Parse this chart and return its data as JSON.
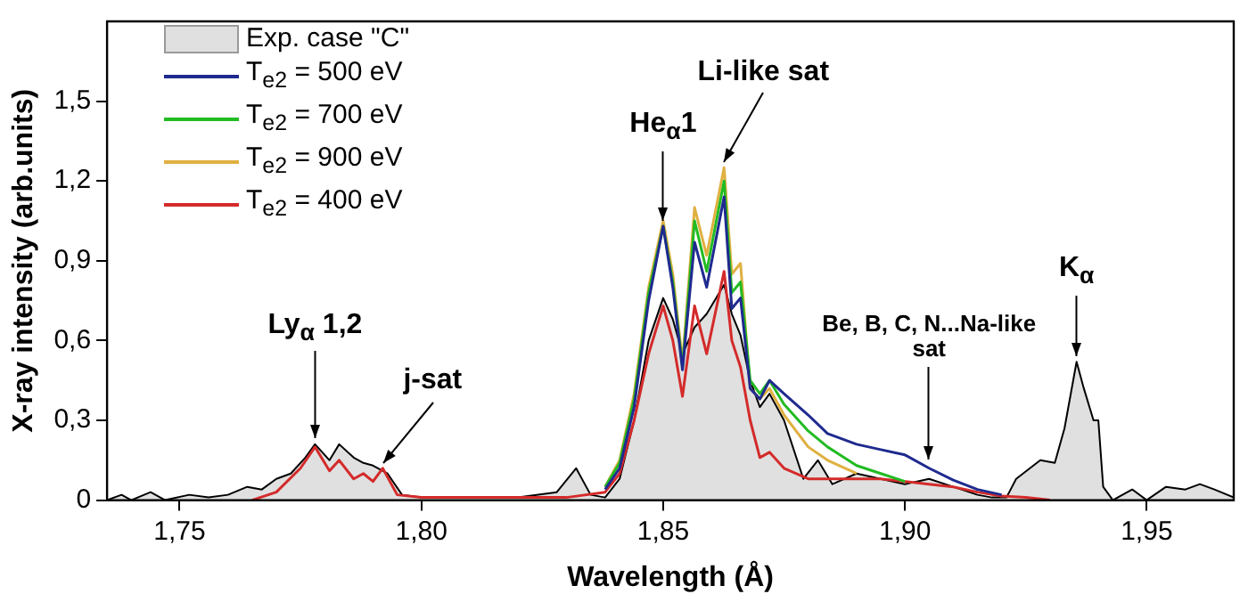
{
  "chart_data": {
    "type": "line",
    "xlabel": "Wavelength (Å)",
    "ylabel": "X-ray intensity (arb.units)",
    "xlim": [
      1.735,
      1.968
    ],
    "ylim": [
      0,
      1.8
    ],
    "xticks": [
      {
        "value": 1.75,
        "label": "1,75"
      },
      {
        "value": 1.8,
        "label": "1,80"
      },
      {
        "value": 1.85,
        "label": "1,85"
      },
      {
        "value": 1.9,
        "label": "1,90"
      },
      {
        "value": 1.95,
        "label": "1,95"
      }
    ],
    "yticks": [
      0,
      {
        "value": 0.3,
        "label": "0,3"
      },
      {
        "value": 0.6,
        "label": "0,6"
      },
      {
        "value": 0.9,
        "label": "0,9"
      },
      {
        "value": 1.2,
        "label": "1,2"
      },
      {
        "value": 1.5,
        "label": "1,5"
      }
    ],
    "legend": "top left",
    "x": [
      1.765,
      1.77,
      1.775,
      1.778,
      1.781,
      1.783,
      1.786,
      1.788,
      1.79,
      1.792,
      1.795,
      1.8,
      1.83,
      1.838,
      1.841,
      1.844,
      1.847,
      1.85,
      1.852,
      1.854,
      1.8565,
      1.859,
      1.8626,
      1.8642,
      1.866,
      1.868,
      1.87,
      1.872,
      1.875,
      1.88,
      1.884,
      1.89,
      1.895,
      1.9,
      1.905,
      1.91,
      1.915,
      1.92,
      1.925,
      1.93
    ],
    "series": [
      {
        "name": "Exp. case \"C\"",
        "type": "area",
        "color": "#e0e0e0",
        "x": [
          1.735,
          1.738,
          1.74,
          1.744,
          1.747,
          1.752,
          1.756,
          1.76,
          1.764,
          1.767,
          1.77,
          1.773,
          1.776,
          1.778,
          1.781,
          1.783,
          1.786,
          1.788,
          1.79,
          1.793,
          1.796,
          1.8,
          1.81,
          1.82,
          1.828,
          1.832,
          1.835,
          1.838,
          1.841,
          1.844,
          1.847,
          1.85,
          1.852,
          1.854,
          1.8565,
          1.859,
          1.8626,
          1.8642,
          1.866,
          1.868,
          1.87,
          1.872,
          1.875,
          1.879,
          1.882,
          1.885,
          1.89,
          1.895,
          1.9,
          1.905,
          1.91,
          1.915,
          1.918,
          1.921,
          1.923,
          1.928,
          1.931,
          1.933,
          1.9355,
          1.937,
          1.939,
          1.94,
          1.941,
          1.943,
          1.947,
          1.95,
          1.954,
          1.958,
          1.961,
          1.964,
          1.968
        ],
        "values": [
          0,
          0.02,
          0,
          0.03,
          0,
          0.02,
          0.01,
          0.02,
          0.05,
          0.04,
          0.08,
          0.1,
          0.16,
          0.21,
          0.15,
          0.21,
          0.16,
          0.14,
          0.13,
          0.1,
          0.02,
          0.01,
          0.01,
          0.01,
          0.03,
          0.12,
          0.02,
          0.01,
          0.08,
          0.3,
          0.6,
          0.76,
          0.68,
          0.55,
          0.65,
          0.7,
          0.81,
          0.7,
          0.62,
          0.45,
          0.35,
          0.4,
          0.3,
          0.08,
          0.15,
          0.06,
          0.1,
          0.08,
          0.06,
          0.08,
          0.05,
          0.02,
          0.01,
          0.01,
          0.08,
          0.15,
          0.14,
          0.27,
          0.52,
          0.42,
          0.3,
          0.3,
          0.05,
          0,
          0.04,
          0,
          0.05,
          0.04,
          0.06,
          0.04,
          0.01
        ]
      },
      {
        "name": "T$_{e2}$ = 500 eV",
        "color": "#1f2a8f",
        "values": [
          null,
          null,
          null,
          null,
          null,
          null,
          null,
          null,
          null,
          null,
          null,
          null,
          null,
          0.04,
          0.12,
          0.35,
          0.75,
          1.03,
          0.8,
          0.49,
          0.97,
          0.8,
          1.14,
          0.72,
          0.76,
          0.42,
          0.38,
          0.45,
          0.4,
          0.32,
          0.25,
          0.21,
          0.19,
          0.17,
          0.12,
          0.075,
          0.04,
          0.02,
          null,
          null
        ]
      },
      {
        "name": "T$_{e2}$ = 700 eV",
        "color": "#22bb22",
        "values": [
          null,
          null,
          null,
          null,
          null,
          null,
          null,
          null,
          null,
          null,
          null,
          null,
          null,
          0.05,
          0.14,
          0.38,
          0.78,
          1.03,
          0.82,
          0.5,
          1.05,
          0.86,
          1.2,
          0.78,
          0.82,
          0.45,
          0.4,
          0.45,
          0.36,
          0.26,
          0.2,
          0.13,
          0.1,
          0.07,
          null,
          null,
          null,
          null,
          null,
          null
        ]
      },
      {
        "name": "T$_{e2}$ = 900 eV",
        "color": "#e0b040",
        "values": [
          null,
          null,
          null,
          null,
          null,
          null,
          null,
          null,
          null,
          null,
          null,
          null,
          null,
          0.05,
          0.15,
          0.4,
          0.8,
          1.05,
          0.85,
          0.52,
          1.1,
          0.92,
          1.25,
          0.85,
          0.89,
          0.42,
          0.38,
          0.42,
          0.32,
          0.2,
          0.15,
          0.1,
          null,
          null,
          null,
          null,
          null,
          null,
          null,
          null
        ]
      },
      {
        "name": "T$_{e2}$ = 400 eV",
        "color": "#d42a2a",
        "values": [
          0,
          0.03,
          0.12,
          0.2,
          0.11,
          0.15,
          0.08,
          0.1,
          0.07,
          0.12,
          0.02,
          0.01,
          0.01,
          0.03,
          0.1,
          0.3,
          0.55,
          0.73,
          0.6,
          0.39,
          0.73,
          0.55,
          0.86,
          0.6,
          0.5,
          0.3,
          0.16,
          0.18,
          0.12,
          0.08,
          0.08,
          0.08,
          0.08,
          0.07,
          0.06,
          0.05,
          0.03,
          0.015,
          0.01,
          0
        ]
      }
    ],
    "annotations": [
      {
        "text": "Ly$_{α}$ 1,2",
        "x": 1.778,
        "y": 0.21
      },
      {
        "text": "j-sat",
        "x": 1.792,
        "y": 0.12
      },
      {
        "text": "He$_{α}$1",
        "x": 1.85,
        "y": 1.03
      },
      {
        "text": "Li-like sat",
        "x": 1.8626,
        "y": 1.25
      },
      {
        "text": "Be, B, C, N...Na-like sat",
        "x": 1.905,
        "y": 0.13
      },
      {
        "text": "K$_{α}$",
        "x": 1.9355,
        "y": 0.52
      }
    ]
  }
}
